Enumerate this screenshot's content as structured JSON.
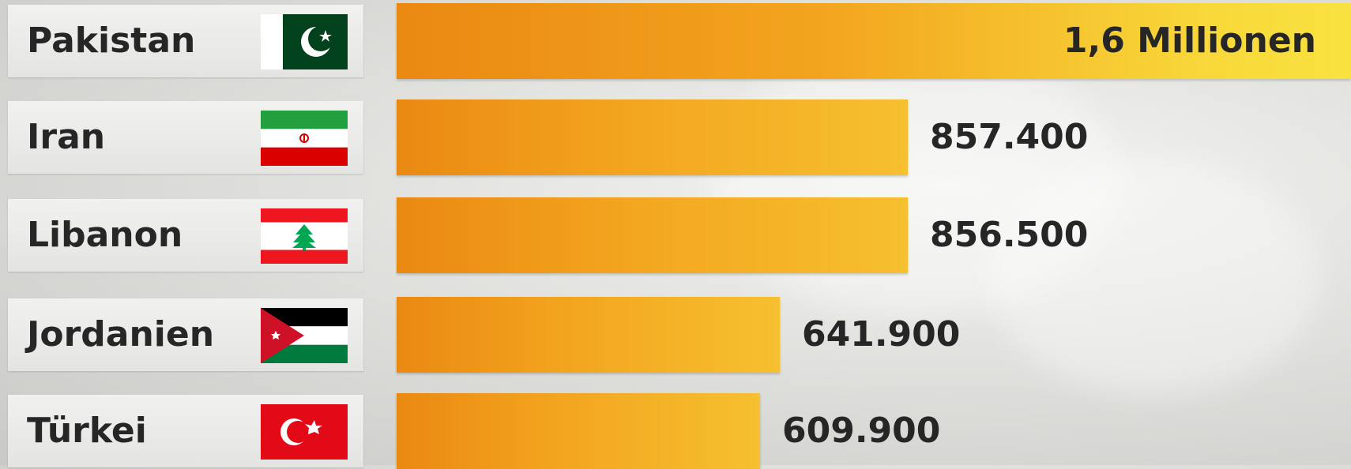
{
  "chart_data": {
    "type": "bar",
    "orientation": "horizontal",
    "categories": [
      "Pakistan",
      "Iran",
      "Libanon",
      "Jordanien",
      "Türkei"
    ],
    "values": [
      1600000,
      857400,
      856500,
      641900,
      609900
    ],
    "value_labels": [
      "1,6 Millionen",
      "857.400",
      "856.500",
      "641.900",
      "609.900"
    ],
    "flags": [
      "pakistan-flag",
      "iran-flag",
      "lebanon-flag",
      "jordan-flag",
      "turkey-flag"
    ],
    "title": "",
    "xlabel": "",
    "ylabel": "",
    "grid": false,
    "legend": "none",
    "colors": {
      "bar_start": "#ea8912",
      "bar_end": "#f6c030",
      "bar_top_end": "#f9e240",
      "text": "#262626",
      "label_bg": "#ececeb"
    }
  }
}
